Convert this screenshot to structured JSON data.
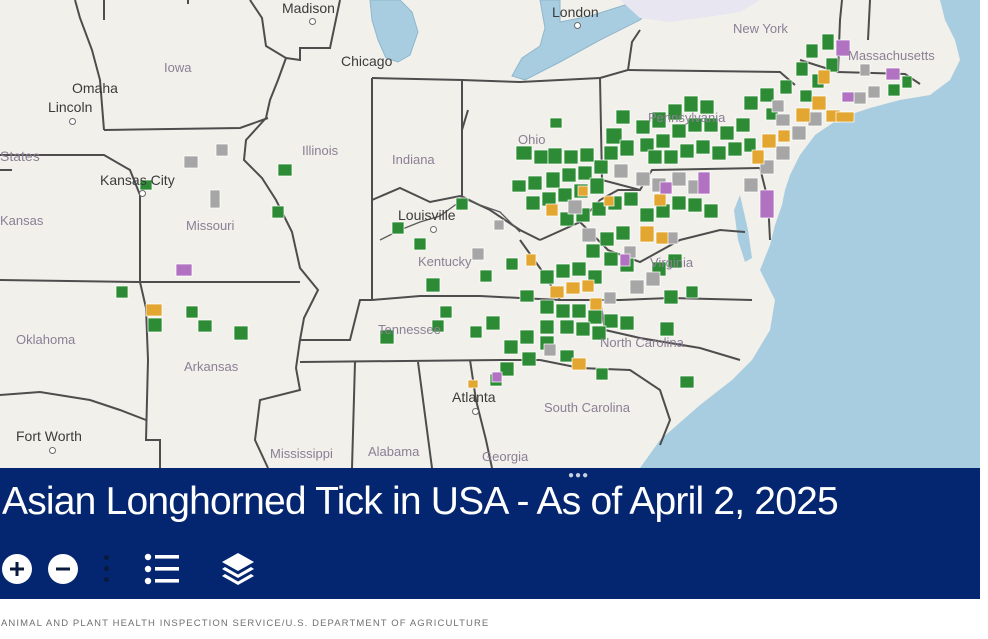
{
  "map": {
    "colors": {
      "land": "#f2f0ea",
      "water": "#a9cde0",
      "border": "#4d4d4d",
      "green": "#2e8b35",
      "orange": "#e3a631",
      "gray": "#a6a6a6",
      "purple": "#b272c2",
      "state_label": "#8a7f96",
      "city_label": "#3b3b3b"
    },
    "state_labels": [
      "Iowa",
      "Illinois",
      "Indiana",
      "Ohio",
      "Pennsylvania",
      "New York",
      "Massachusetts",
      "Missouri",
      "Kansas",
      "Kentucky",
      "Virginia",
      "Tennessee",
      "North Carolina",
      "Oklahoma",
      "Arkansas",
      "South Carolina",
      "Mississippi",
      "Alabama",
      "Georgia",
      "States"
    ],
    "cities": [
      "Madison",
      "Chicago",
      "London",
      "Omaha",
      "Lincoln",
      "Kansas City",
      "Louisville",
      "Atlanta",
      "Fort Worth"
    ]
  },
  "banner": {
    "title": "Asian Longhorned Tick in USA - As of April 2, 2025",
    "colors": {
      "background": "#042670",
      "text": "#ffffff"
    },
    "controls": {
      "zoom_in_icon": "plus-icon",
      "zoom_out_icon": "minus-icon",
      "more_icon": "vertical-dots-icon",
      "legend_icon": "list-icon",
      "layers_icon": "layers-icon"
    }
  },
  "credit": "ANIMAL AND PLANT HEALTH INSPECTION SERVICE/U.S. DEPARTMENT OF AGRICULTURE"
}
